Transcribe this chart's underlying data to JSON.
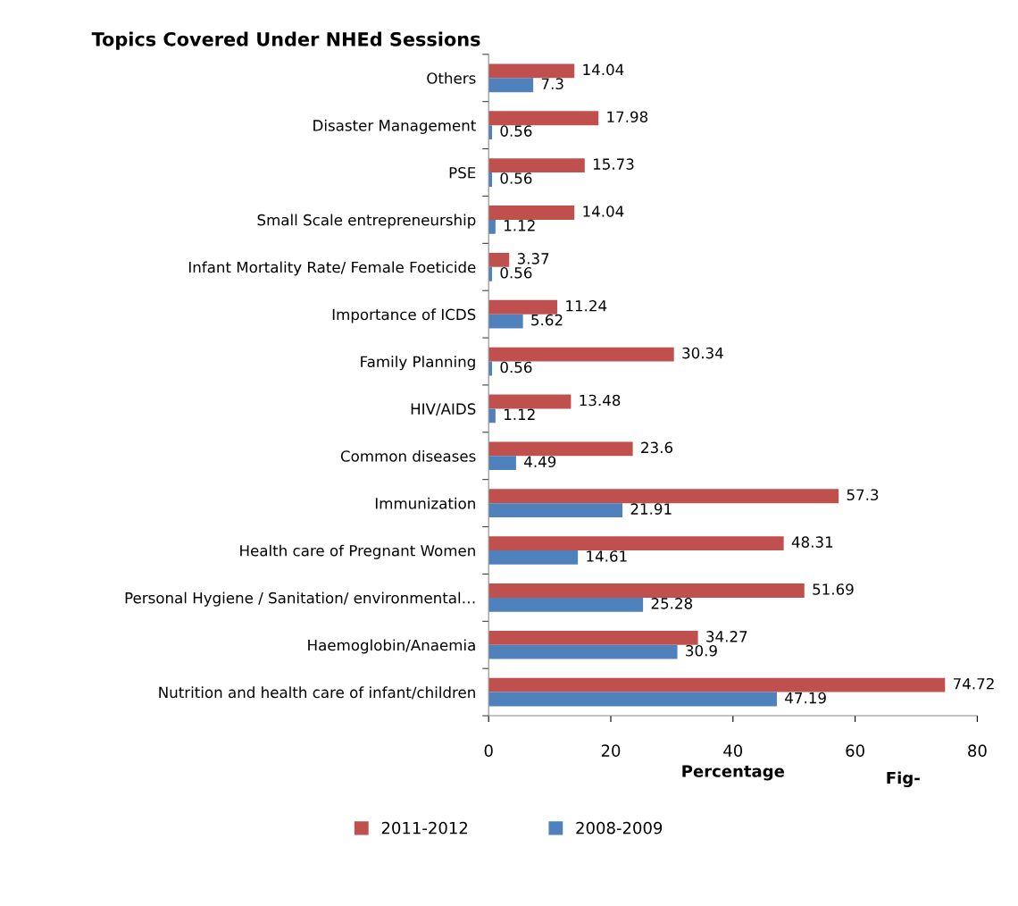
{
  "chart_data": {
    "type": "bar",
    "orientation": "horizontal",
    "title": "Topics Covered Under NHEd Sessions",
    "xlabel": "Percentage",
    "categories": [
      "Others",
      "Disaster Management",
      "PSE",
      "Small Scale entrepreneurship",
      "Infant Mortality Rate/ Female Foeticide",
      "Importance of ICDS",
      "Family Planning",
      "HIV/AIDS",
      "Common diseases",
      "Immunization",
      "Health care of Pregnant Women",
      "Personal Hygiene / Sanitation/ environmental…",
      "Haemoglobin/Anaemia",
      "Nutrition and health care of infant/children"
    ],
    "series": [
      {
        "name": "2011-2012",
        "color": "#c0504d",
        "values": [
          14.04,
          17.98,
          15.73,
          14.04,
          3.37,
          11.24,
          30.34,
          13.48,
          23.6,
          57.3,
          48.31,
          51.69,
          34.27,
          74.72
        ]
      },
      {
        "name": "2008-2009",
        "color": "#4f81bd",
        "values": [
          7.3,
          0.56,
          0.56,
          1.12,
          0.56,
          5.62,
          0.56,
          1.12,
          4.49,
          21.91,
          14.61,
          25.28,
          30.9,
          47.19
        ]
      }
    ],
    "xlim": [
      0,
      80
    ],
    "xticks": [
      0,
      20,
      40,
      60,
      80
    ],
    "grid": false,
    "legend": "bottom",
    "data_labels": true,
    "annotations": [
      "Fig-"
    ]
  }
}
